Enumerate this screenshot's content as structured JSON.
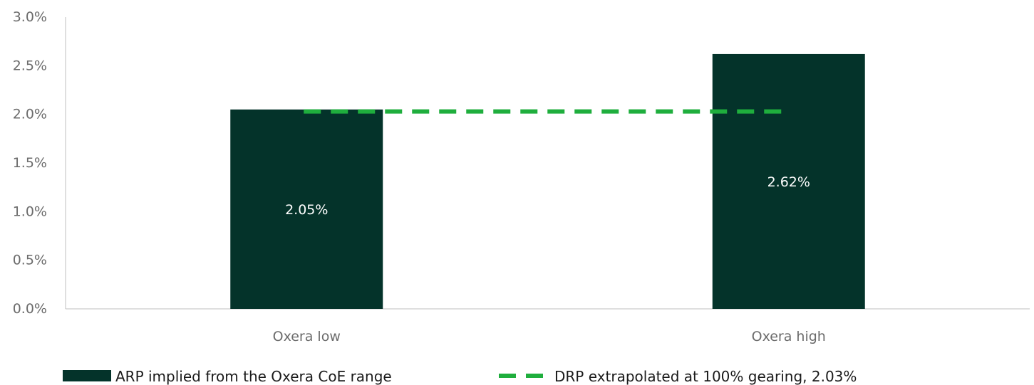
{
  "chart_data": {
    "type": "bar",
    "categories": [
      "Oxera low",
      "Oxera high"
    ],
    "series": [
      {
        "name": "ARP implied from the Oxera CoE range",
        "kind": "bar",
        "values": [
          2.05,
          2.62
        ],
        "labels": [
          "2.05%",
          "2.62%"
        ],
        "color": "#04332a"
      },
      {
        "name": "DRP extrapolated at 100% gearing, 2.03%",
        "kind": "dashed-line",
        "values": [
          2.03,
          2.03
        ],
        "color": "#1fae3d"
      }
    ],
    "ylim": [
      0,
      3.0
    ],
    "yticks": [
      0.0,
      0.5,
      1.0,
      1.5,
      2.0,
      2.5,
      3.0
    ],
    "ytick_labels": [
      "0.0%",
      "0.5%",
      "1.0%",
      "1.5%",
      "2.0%",
      "2.5%",
      "3.0%"
    ],
    "grid": false,
    "legend_position": "bottom",
    "title": "",
    "xlabel": "",
    "ylabel": ""
  }
}
